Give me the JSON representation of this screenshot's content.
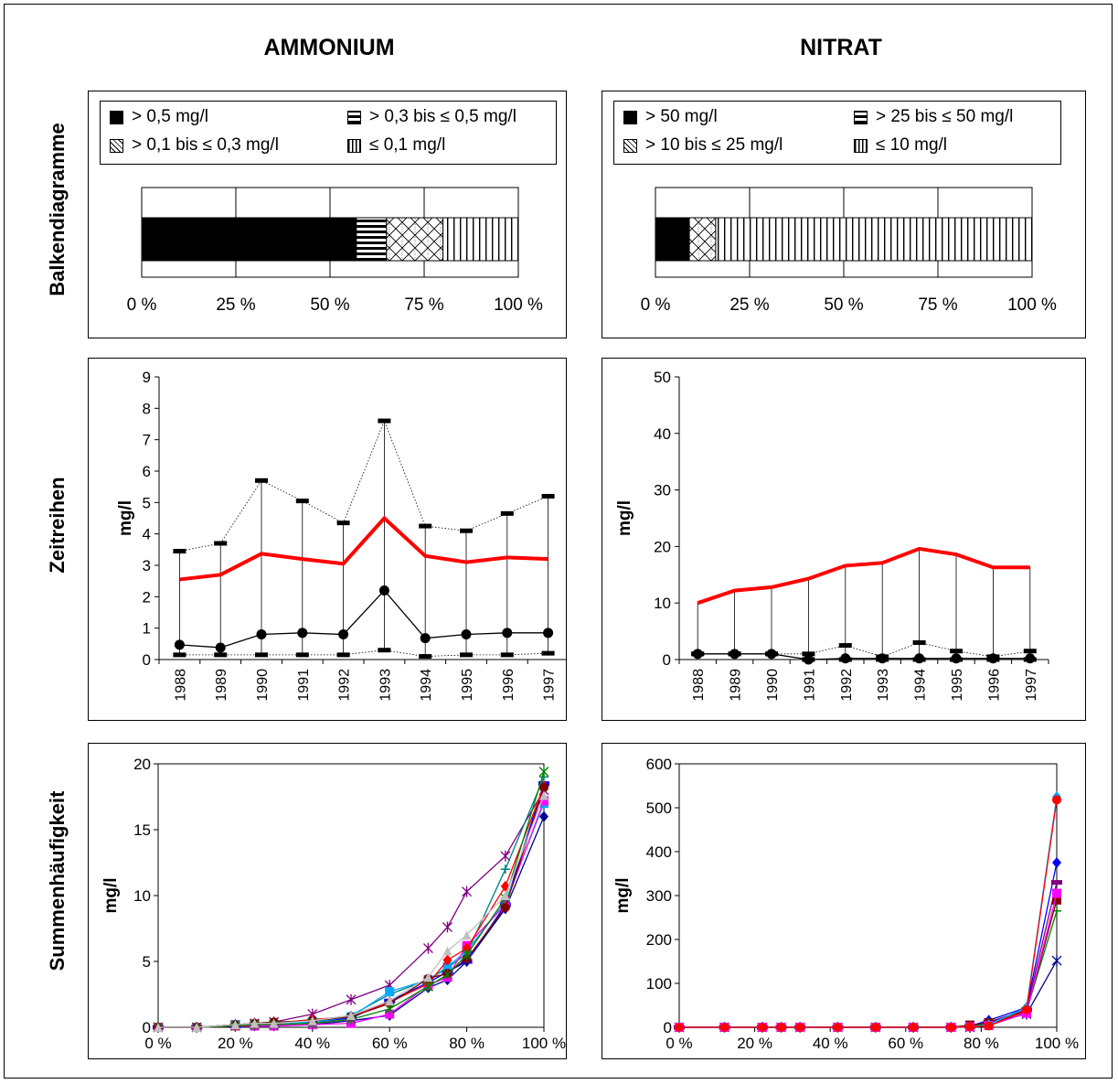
{
  "columns": [
    "AMMONIUM",
    "NITRAT"
  ],
  "rows": [
    "Balkendiagramme",
    "Zeitreihen",
    "Summenhäufigkeit"
  ],
  "colors": {
    "red": "#ff0000",
    "black": "#000000"
  },
  "legends": [
    [
      "> 0,5 mg/l",
      "> 0,3 bis ≤ 0,5 mg/l",
      "> 0,1 bis ≤ 0,3 mg/l",
      "≤ 0,1 mg/l"
    ],
    [
      "> 50 mg/l",
      "> 25 bis ≤ 50 mg/l",
      "> 10 bis ≤ 25 mg/l",
      "≤ 10 mg/l"
    ]
  ],
  "legend_patterns": [
    "solid-black",
    "horizontal-stripes",
    "crosshatch",
    "vertical-stripes"
  ],
  "chart_data": [
    {
      "type": "bar",
      "panel": "ammonium-balkendiagramm",
      "orientation": "horizontal-stacked",
      "categories": [
        "> 0,5 mg/l",
        "> 0,3 bis ≤ 0,5 mg/l",
        "> 0,1 bis ≤ 0,3 mg/l",
        "≤ 0,1 mg/l"
      ],
      "values": [
        57,
        8,
        15,
        20
      ],
      "xlim": [
        0,
        100
      ],
      "xticks": [
        "0 %",
        "25 %",
        "50 %",
        "75 %",
        "100 %"
      ],
      "grid": true
    },
    {
      "type": "bar",
      "panel": "nitrat-balkendiagramm",
      "orientation": "horizontal-stacked",
      "categories": [
        "> 50 mg/l",
        "> 25 bis ≤ 50 mg/l",
        "> 10 bis ≤ 25 mg/l",
        "≤ 10 mg/l"
      ],
      "values": [
        9,
        0,
        7,
        84
      ],
      "xlim": [
        0,
        100
      ],
      "xticks": [
        "0 %",
        "25 %",
        "50 %",
        "75 %",
        "100 %"
      ],
      "grid": true
    },
    {
      "type": "line",
      "panel": "ammonium-zeitreihe",
      "ylabel": "mg/l",
      "ylim": [
        0,
        9
      ],
      "yticks": [
        "0",
        "1",
        "2",
        "3",
        "4",
        "5",
        "6",
        "7",
        "8",
        "9"
      ],
      "categories": [
        "1988",
        "1989",
        "1990",
        "1991",
        "1992",
        "1993",
        "1994",
        "1995",
        "1996",
        "1997"
      ],
      "max": [
        3.45,
        3.7,
        5.7,
        5.05,
        4.35,
        7.6,
        4.25,
        4.1,
        4.65,
        5.2
      ],
      "mean": [
        2.55,
        2.7,
        3.37,
        3.2,
        3.05,
        4.5,
        3.3,
        3.1,
        3.25,
        3.2
      ],
      "median": [
        0.47,
        0.38,
        0.8,
        0.85,
        0.8,
        2.2,
        0.68,
        0.8,
        0.85,
        0.85
      ],
      "min": [
        0.15,
        0.15,
        0.15,
        0.15,
        0.15,
        0.3,
        0.1,
        0.15,
        0.15,
        0.2
      ]
    },
    {
      "type": "line",
      "panel": "nitrat-zeitreihe",
      "ylabel": "mg/l",
      "ylim": [
        0,
        50
      ],
      "yticks": [
        "0",
        "10",
        "20",
        "30",
        "40",
        "50"
      ],
      "categories": [
        "1988",
        "1989",
        "1990",
        "1991",
        "1992",
        "1993",
        "1994",
        "1995",
        "1996",
        "1997"
      ],
      "max": [
        10.0,
        12.2,
        12.8,
        14.3,
        16.6,
        17.1,
        19.6,
        18.6,
        16.3,
        16.3
      ],
      "mean": [
        10.0,
        12.2,
        12.8,
        14.3,
        16.6,
        17.1,
        19.6,
        18.6,
        16.3,
        16.3
      ],
      "upper": [
        1.0,
        1.0,
        1.0,
        1.0,
        2.5,
        0.5,
        3.0,
        1.5,
        0.5,
        1.5
      ],
      "median": [
        1.0,
        1.0,
        1.0,
        0.0,
        0.2,
        0.2,
        0.2,
        0.2,
        0.2,
        0.2
      ],
      "min": [
        1.0,
        1.0,
        1.0,
        0.0,
        0.0,
        0.0,
        0.0,
        0.0,
        0.0,
        0.0
      ]
    },
    {
      "type": "scatter",
      "panel": "ammonium-summenhaeufigkeit",
      "ylabel": "mg/l",
      "ylim": [
        0,
        20
      ],
      "yticks": [
        "0",
        "5",
        "10",
        "15",
        "20"
      ],
      "xlim": [
        0,
        100
      ],
      "xticks": [
        "0 %",
        "20 %",
        "40 %",
        "60 %",
        "80 %",
        "100 %"
      ],
      "x": [
        0,
        10,
        20,
        25,
        30,
        40,
        50,
        60,
        70,
        75,
        80,
        90,
        100
      ],
      "series": [
        {
          "color": "#800080",
          "values": [
            0,
            0,
            0.2,
            0.3,
            0.4,
            1.0,
            2.1,
            3.2,
            6.0,
            7.6,
            10.3,
            13.0,
            18.0
          ]
        },
        {
          "color": "#00008b",
          "values": [
            0,
            0,
            0.1,
            0.1,
            0.1,
            0.2,
            0.5,
            0.9,
            3.0,
            3.6,
            5.0,
            9.0,
            16.0
          ]
        },
        {
          "color": "#0000ff",
          "values": [
            0,
            0,
            0.1,
            0.2,
            0.2,
            0.4,
            0.7,
            2.0,
            3.4,
            4.2,
            5.0,
            9.3,
            18.5
          ]
        },
        {
          "color": "#008080",
          "values": [
            0,
            0,
            0.1,
            0.2,
            0.3,
            0.5,
            0.9,
            2.5,
            3.6,
            4.5,
            5.6,
            12.0,
            19.0
          ]
        },
        {
          "color": "#00aaff",
          "values": [
            0,
            0,
            0.2,
            0.2,
            0.2,
            0.4,
            0.8,
            2.7,
            3.6,
            4.6,
            5.8,
            9.5,
            17.0
          ]
        },
        {
          "color": "#ff00ff",
          "values": [
            0,
            0,
            0.1,
            0.1,
            0.1,
            0.2,
            0.3,
            1.0,
            3.2,
            3.8,
            6.2,
            9.3,
            17.2
          ]
        },
        {
          "color": "#ff0000",
          "values": [
            0,
            0,
            0.1,
            0.2,
            0.3,
            0.6,
            0.8,
            1.9,
            3.3,
            5.1,
            6.0,
            10.7,
            18.3
          ]
        },
        {
          "color": "#800000",
          "values": [
            0,
            0,
            0.2,
            0.3,
            0.4,
            0.5,
            0.8,
            1.8,
            3.7,
            4.1,
            5.2,
            9.1,
            18.2
          ]
        },
        {
          "color": "#008000",
          "values": [
            0,
            0,
            0.1,
            0.2,
            0.2,
            0.3,
            0.6,
            1.4,
            3.1,
            4.0,
            5.5,
            9.8,
            19.4
          ]
        },
        {
          "color": "#c0c0c0",
          "values": [
            0,
            0,
            0.2,
            0.3,
            0.3,
            0.5,
            0.9,
            2.0,
            3.8,
            5.8,
            7.0,
            10.0,
            17.6
          ]
        }
      ]
    },
    {
      "type": "scatter",
      "panel": "nitrat-summenhaeufigkeit",
      "ylabel": "mg/l",
      "ylim": [
        0,
        600
      ],
      "yticks": [
        "0",
        "100",
        "200",
        "300",
        "400",
        "500",
        "600"
      ],
      "xlim": [
        0,
        100
      ],
      "xticks": [
        "0 %",
        "20 %",
        "40 %",
        "60 %",
        "80 %",
        "100 %"
      ],
      "x": [
        0,
        12,
        22,
        27,
        32,
        42,
        52,
        62,
        72,
        77,
        82,
        92,
        100
      ],
      "series": [
        {
          "color": "#00008b",
          "values": [
            0,
            0,
            0,
            0,
            0,
            0,
            0,
            0,
            0,
            0,
            10,
            30,
            152
          ]
        },
        {
          "color": "#0000ff",
          "values": [
            0,
            0,
            0,
            0,
            0,
            0,
            0,
            0,
            0,
            3,
            16,
            45,
            375
          ]
        },
        {
          "color": "#800080",
          "values": [
            0,
            0,
            0,
            0,
            0,
            0,
            0,
            0,
            0,
            2,
            12,
            40,
            330
          ]
        },
        {
          "color": "#008000",
          "values": [
            0,
            0,
            0,
            0,
            0,
            0,
            0,
            0,
            0,
            2,
            8,
            38,
            265
          ]
        },
        {
          "color": "#800000",
          "values": [
            0,
            0,
            0,
            0,
            0,
            0,
            0,
            0,
            0,
            5,
            10,
            35,
            290
          ]
        },
        {
          "color": "#ff00ff",
          "values": [
            0,
            0,
            0,
            0,
            0,
            0,
            0,
            0,
            0,
            1,
            4,
            32,
            305
          ]
        },
        {
          "color": "#00aaff",
          "values": [
            0,
            0,
            0,
            0,
            0,
            0,
            0,
            0,
            0,
            1,
            6,
            45,
            525
          ]
        },
        {
          "color": "#ff0000",
          "values": [
            0,
            0,
            0,
            0,
            0,
            0,
            0,
            0,
            0,
            1,
            3,
            40,
            518
          ]
        }
      ]
    }
  ]
}
